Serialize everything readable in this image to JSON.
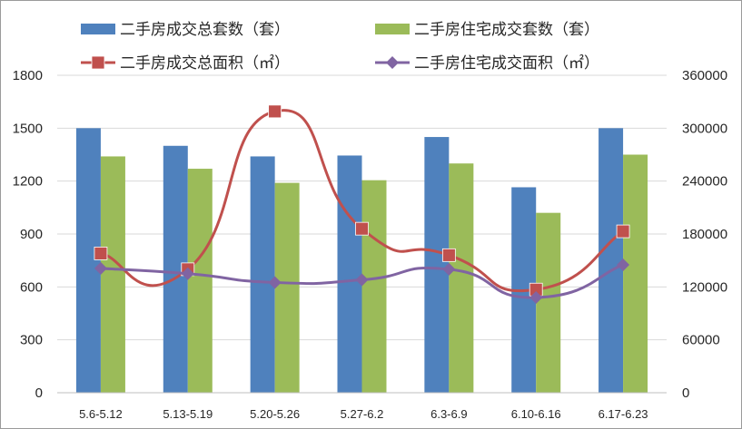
{
  "chart_data": {
    "type": "bar",
    "categories": [
      "5.6-5.12",
      "5.13-5.19",
      "5.20-5.26",
      "5.27-6.2",
      "6.3-6.9",
      "6.10-6.16",
      "6.17-6.23"
    ],
    "series": [
      {
        "name": "二手房成交总套数（套）",
        "kind": "bar",
        "axis": "left",
        "color": "#4F81BD",
        "values": [
          1500,
          1400,
          1340,
          1345,
          1450,
          1165,
          1500
        ]
      },
      {
        "name": "二手房住宅成交套数（套）",
        "kind": "bar",
        "axis": "left",
        "color": "#9BBB59",
        "values": [
          1340,
          1270,
          1190,
          1205,
          1300,
          1020,
          1350
        ]
      },
      {
        "name": "二手房成交总面积（㎡）",
        "kind": "line",
        "axis": "right",
        "color": "#C0504D",
        "marker": "square",
        "values": [
          158000,
          140000,
          319000,
          186000,
          156000,
          117000,
          183000
        ]
      },
      {
        "name": "二手房住宅成交面积（㎡）",
        "kind": "line",
        "axis": "right",
        "color": "#8064A2",
        "marker": "diamond",
        "values": [
          141000,
          135000,
          125000,
          128000,
          140000,
          108000,
          145000
        ]
      }
    ],
    "y_left": {
      "min": 0,
      "max": 1800,
      "ticks": [
        "0",
        "300",
        "600",
        "900",
        "1200",
        "1500",
        "1800"
      ]
    },
    "y_right": {
      "min": 0,
      "max": 360000,
      "ticks": [
        "0",
        "60000",
        "120000",
        "180000",
        "240000",
        "300000",
        "360000"
      ]
    },
    "grid": true,
    "legend_position": "top"
  }
}
